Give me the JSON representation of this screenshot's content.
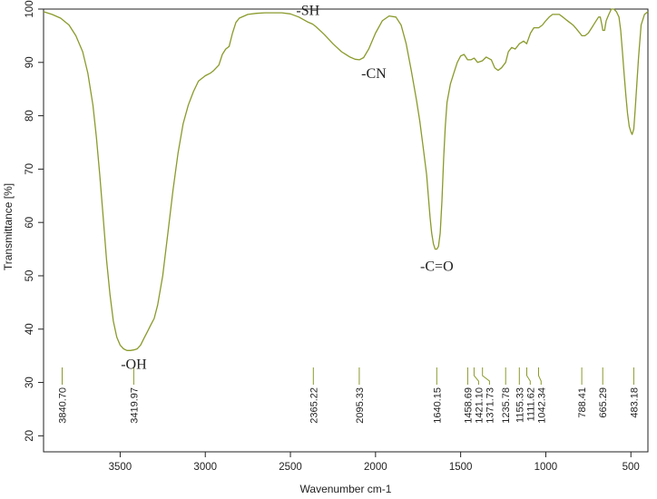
{
  "chart_data": {
    "type": "line",
    "xlabel": "Wavenumber cm-1",
    "ylabel": "Transmittance [%]",
    "xlim": [
      3950,
      400
    ],
    "ylim": [
      17,
      100
    ],
    "x_reversed": true,
    "x_ticks": [
      3500,
      3000,
      2500,
      2000,
      1500,
      1000,
      500
    ],
    "y_ticks": [
      20,
      30,
      40,
      50,
      60,
      70,
      80,
      90,
      100
    ],
    "grid": false,
    "line_color": "#8a9a2b",
    "series": [
      {
        "x": [
          3950,
          3900,
          3850,
          3800,
          3760,
          3720,
          3690,
          3660,
          3640,
          3620,
          3600,
          3580,
          3560,
          3540,
          3520,
          3500,
          3480,
          3460,
          3440,
          3420,
          3400,
          3380,
          3360,
          3340,
          3320,
          3300,
          3280,
          3250,
          3220,
          3190,
          3160,
          3130,
          3100,
          3070,
          3040,
          3000,
          2970,
          2950,
          2920,
          2900,
          2880,
          2860,
          2840,
          2820,
          2800,
          2750,
          2700,
          2650,
          2600,
          2550,
          2500,
          2450,
          2400,
          2370,
          2350,
          2300,
          2250,
          2200,
          2150,
          2120,
          2095,
          2070,
          2040,
          2000,
          1960,
          1920,
          1880,
          1850,
          1820,
          1790,
          1760,
          1740,
          1720,
          1700,
          1690,
          1680,
          1670,
          1660,
          1650,
          1640,
          1630,
          1620,
          1610,
          1600,
          1590,
          1580,
          1560,
          1540,
          1520,
          1500,
          1480,
          1459,
          1440,
          1421,
          1400,
          1372,
          1350,
          1320,
          1300,
          1280,
          1260,
          1236,
          1220,
          1200,
          1180,
          1155,
          1130,
          1112,
          1090,
          1070,
          1042,
          1020,
          1000,
          980,
          960,
          940,
          920,
          900,
          880,
          860,
          840,
          820,
          800,
          788,
          770,
          750,
          730,
          710,
          690,
          680,
          670,
          665,
          655,
          645,
          630,
          615,
          600,
          585,
          570,
          560,
          550,
          540,
          530,
          520,
          510,
          500,
          493,
          483,
          475,
          465,
          455,
          440,
          420,
          400
        ],
        "y": [
          99.5,
          99.0,
          98.3,
          97.0,
          95.0,
          92.0,
          88.0,
          82.0,
          76.0,
          69.0,
          61.0,
          53.0,
          46.5,
          41.5,
          38.5,
          37.0,
          36.3,
          36.0,
          36.0,
          36.1,
          36.3,
          37.0,
          38.3,
          39.5,
          40.8,
          42.0,
          44.5,
          50.0,
          58.0,
          66.0,
          73.0,
          78.5,
          82.0,
          84.5,
          86.5,
          87.5,
          88.0,
          88.5,
          89.5,
          91.5,
          92.5,
          93.0,
          95.5,
          97.5,
          98.3,
          99.0,
          99.2,
          99.3,
          99.3,
          99.3,
          99.1,
          98.5,
          97.6,
          97.2,
          96.7,
          95.2,
          93.5,
          92.0,
          91.0,
          90.6,
          90.5,
          90.9,
          92.5,
          95.5,
          97.8,
          98.7,
          98.5,
          97.0,
          93.5,
          88.5,
          83.0,
          79.0,
          74.0,
          69.0,
          65.0,
          61.0,
          58.0,
          56.0,
          55.0,
          55.0,
          55.5,
          58.0,
          64.0,
          72.0,
          78.0,
          82.5,
          86.0,
          88.0,
          90.0,
          91.2,
          91.5,
          90.5,
          90.5,
          90.8,
          90.0,
          90.3,
          91.0,
          90.5,
          89.0,
          88.5,
          89.0,
          90.0,
          92.0,
          92.8,
          92.5,
          93.5,
          94.0,
          93.5,
          95.5,
          96.5,
          96.5,
          97.0,
          97.8,
          98.5,
          99.0,
          99.0,
          99.0,
          98.5,
          98.0,
          97.5,
          97.0,
          96.3,
          95.5,
          95.0,
          95.0,
          95.5,
          96.5,
          97.5,
          98.5,
          98.5,
          97.0,
          96.0,
          96.0,
          97.8,
          99.0,
          100.0,
          100.0,
          99.5,
          98.5,
          96.0,
          92.0,
          88.0,
          84.0,
          80.5,
          78.0,
          77.0,
          76.5,
          77.5,
          81.0,
          86.0,
          91.0,
          97.0,
          99.0,
          99.5
        ]
      }
    ],
    "annotations": [
      {
        "text": "-OH",
        "x": 3419.97,
        "y": 36
      },
      {
        "text": "-SH",
        "x": 2365.22,
        "y": 97.2
      },
      {
        "text": "-CN",
        "x": 2095.33,
        "y": 90.5
      },
      {
        "text": "-C=O",
        "x": 1640.15,
        "y": 55
      }
    ],
    "peak_markers": [
      {
        "x": 3840.7,
        "label": "3840.70"
      },
      {
        "x": 3419.97,
        "label": "3419.97"
      },
      {
        "x": 2365.22,
        "label": "2365.22"
      },
      {
        "x": 2095.33,
        "label": "2095.33"
      },
      {
        "x": 1640.15,
        "label": "1640.15"
      },
      {
        "x": 1458.69,
        "label": "1458.69"
      },
      {
        "x": 1421.1,
        "label": "1421.10"
      },
      {
        "x": 1371.73,
        "label": "1371.73"
      },
      {
        "x": 1235.78,
        "label": "1235.78"
      },
      {
        "x": 1155.33,
        "label": "1155.33"
      },
      {
        "x": 1111.62,
        "label": "1111.62"
      },
      {
        "x": 1042.34,
        "label": "1042.34"
      },
      {
        "x": 788.41,
        "label": "788.41"
      },
      {
        "x": 665.29,
        "label": "665.29"
      },
      {
        "x": 483.18,
        "label": "483.18"
      }
    ]
  }
}
